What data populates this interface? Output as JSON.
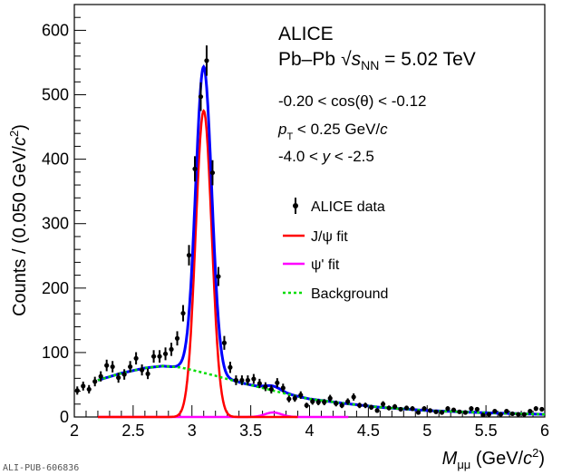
{
  "chart_data": {
    "type": "scatter",
    "title": "",
    "xlabel_main": "M",
    "xlabel_sub": "μμ",
    "xlabel_unit_pre": " (GeV/",
    "xlabel_unit_c": "c",
    "xlabel_unit_sup": "2",
    "xlabel_unit_post": ")",
    "ylabel_pre": "Counts / (0.050 GeV/",
    "ylabel_c": "c",
    "ylabel_sup": "2",
    "ylabel_post": ")",
    "xlim": [
      2,
      6
    ],
    "ylim": [
      0,
      640
    ],
    "x_ticks": [
      "2",
      "2.5",
      "3",
      "3.5",
      "4",
      "4.5",
      "5",
      "5.5",
      "6"
    ],
    "y_ticks": [
      "0",
      "100",
      "200",
      "300",
      "400",
      "500",
      "600"
    ],
    "grid": false,
    "legend_position": "top-right",
    "annotations": {
      "experiment": "ALICE",
      "collision": "Pb–Pb",
      "energy_symbol": "s",
      "energy_sub": "NN",
      "energy_value": " = 5.02 TeV",
      "cos_range": "-0.20 < cos(θ) < -0.12",
      "pt_symbol": "p",
      "pt_sub": "T",
      "pt_value": " < 0.25 GeV/",
      "pt_c": "c",
      "y_pre": "-4.0 < ",
      "y_symbol": "y",
      "y_post": " < -2.5"
    },
    "watermark": "ALI-PUB-606836",
    "legend": [
      {
        "label": "ALICE data",
        "color": "#000000",
        "style": "marker"
      },
      {
        "label": "J/ψ fit",
        "color": "#ff0000",
        "style": "solid"
      },
      {
        "label": "ψ' fit",
        "color": "#ff00ff",
        "style": "solid"
      },
      {
        "label": "Background",
        "color": "#00dd00",
        "style": "dotted"
      }
    ],
    "data": {
      "name": "ALICE data",
      "bin_width": 0.05,
      "x": [
        2.025,
        2.075,
        2.125,
        2.175,
        2.225,
        2.275,
        2.325,
        2.375,
        2.425,
        2.475,
        2.525,
        2.575,
        2.625,
        2.675,
        2.725,
        2.775,
        2.825,
        2.875,
        2.925,
        2.975,
        3.025,
        3.075,
        3.125,
        3.175,
        3.225,
        3.275,
        3.325,
        3.375,
        3.425,
        3.475,
        3.525,
        3.575,
        3.625,
        3.675,
        3.725,
        3.775,
        3.825,
        3.875,
        3.925,
        3.975,
        4.025,
        4.075,
        4.125,
        4.175,
        4.225,
        4.275,
        4.325,
        4.375,
        4.425,
        4.475,
        4.525,
        4.575,
        4.625,
        4.675,
        4.725,
        4.775,
        4.825,
        4.875,
        4.925,
        4.975,
        5.025,
        5.075,
        5.125,
        5.175,
        5.225,
        5.275,
        5.325,
        5.375,
        5.425,
        5.475,
        5.525,
        5.575,
        5.625,
        5.675,
        5.725,
        5.775,
        5.825,
        5.875,
        5.925,
        5.975
      ],
      "y": [
        41,
        48,
        43,
        55,
        63,
        80,
        78,
        61,
        66,
        78,
        91,
        73,
        67,
        94,
        94,
        98,
        105,
        122,
        161,
        251,
        385,
        497,
        553,
        379,
        218,
        115,
        77,
        57,
        57,
        57,
        59,
        52,
        47,
        43,
        53,
        45,
        28,
        29,
        34,
        18,
        24,
        23,
        23,
        29,
        21,
        18,
        24,
        31,
        18,
        18,
        15,
        10,
        20,
        14,
        16,
        12,
        14,
        13,
        7,
        13,
        10,
        8,
        7,
        13,
        11,
        8,
        7,
        13,
        12,
        3,
        4,
        9,
        4,
        9,
        5,
        4,
        4,
        9,
        13,
        12
      ]
    },
    "fits": {
      "range": [
        2.2,
        6.0
      ],
      "jpsi": {
        "name": "J/ψ fit",
        "peak": 475,
        "mean": 3.1,
        "sigma": 0.068,
        "color": "#ff0000"
      },
      "psi2s": {
        "name": "ψ' fit",
        "peak": 7,
        "mean": 3.69,
        "sigma": 0.07,
        "range": [
          2.2,
          4.33
        ],
        "color": "#ff00ff"
      },
      "background": {
        "name": "Background",
        "color": "#00dd00",
        "points": [
          [
            2.2,
            57
          ],
          [
            2.4,
            68
          ],
          [
            2.6,
            76
          ],
          [
            2.75,
            79
          ],
          [
            2.9,
            77
          ],
          [
            3.0,
            73
          ],
          [
            3.2,
            64
          ],
          [
            3.4,
            54
          ],
          [
            3.6,
            45
          ],
          [
            3.8,
            36
          ],
          [
            4.0,
            28
          ],
          [
            4.3,
            21
          ],
          [
            4.6,
            15
          ],
          [
            5.0,
            10
          ],
          [
            5.5,
            6.5
          ],
          [
            6.0,
            4
          ]
        ]
      },
      "total": {
        "name": "Total fit",
        "color": "#0000ff"
      }
    }
  }
}
